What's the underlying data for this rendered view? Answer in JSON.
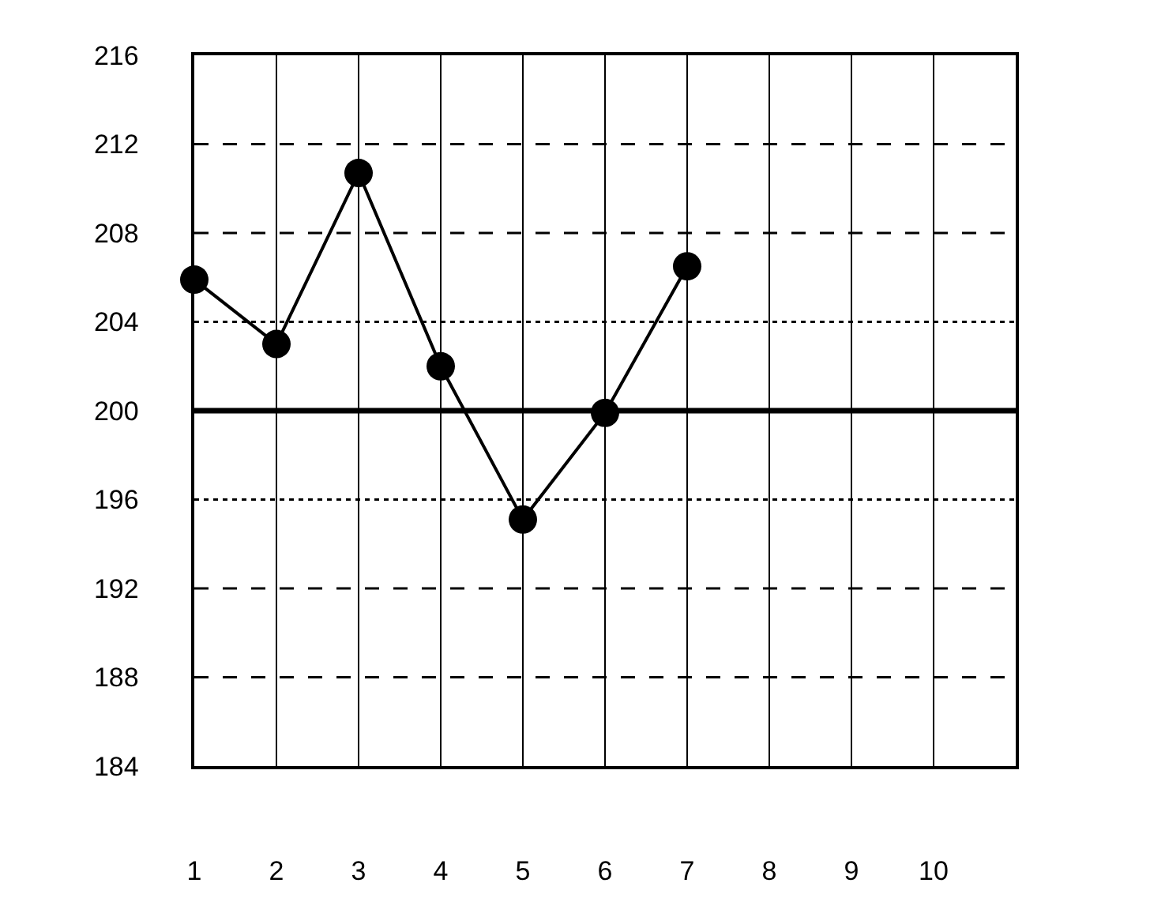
{
  "chart_data": {
    "type": "line",
    "x": [
      1,
      2,
      3,
      4,
      5,
      6,
      7
    ],
    "series": [
      {
        "color": "#000000",
        "values": [
          205.9,
          203.0,
          210.7,
          202.0,
          195.1,
          199.9,
          206.5
        ]
      }
    ],
    "xlim": [
      1,
      11
    ],
    "xticks": [
      1,
      2,
      3,
      4,
      5,
      6,
      7,
      8,
      9,
      10
    ],
    "ylim": [
      184,
      216
    ],
    "yticks": [
      184,
      188,
      192,
      196,
      200,
      204,
      208,
      212,
      216
    ],
    "grid": "x",
    "marker": "circle",
    "line_style": "solid",
    "legend": false,
    "ref_lines": [
      {
        "axis": "y",
        "value": 212,
        "line_style": "dashed",
        "color": "#000000"
      },
      {
        "axis": "y",
        "value": 208,
        "line_style": "dashed",
        "color": "#000000"
      },
      {
        "axis": "y",
        "value": 204,
        "line_style": "dotted",
        "color": "#000000"
      },
      {
        "axis": "y",
        "value": 200,
        "line_style": "solid",
        "color": "#000000"
      },
      {
        "axis": "y",
        "value": 196,
        "line_style": "dotted",
        "color": "#000000"
      },
      {
        "axis": "y",
        "value": 192,
        "line_style": "dashed",
        "color": "#000000"
      },
      {
        "axis": "y",
        "value": 188,
        "line_style": "dashed",
        "color": "#000000"
      }
    ]
  }
}
